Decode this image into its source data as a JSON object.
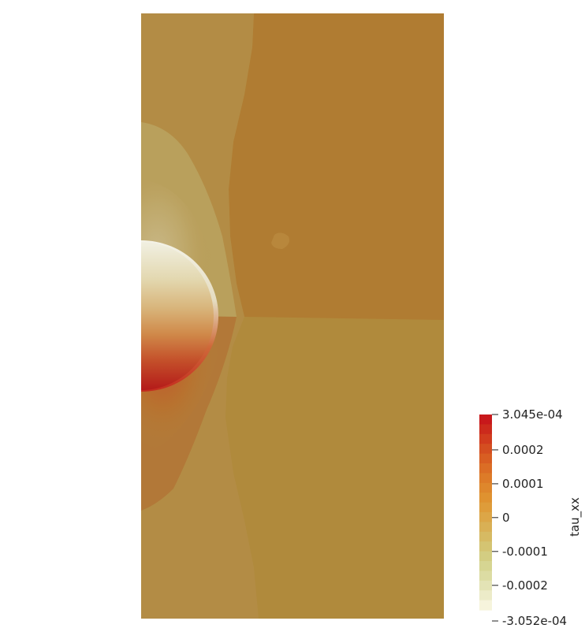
{
  "colorbar": {
    "title": "tau_xx",
    "max_label": "3.045e-04",
    "min_label": "-3.052e-04",
    "range": [
      -0.0003052,
      0.0003045
    ],
    "ticks": [
      {
        "value": 0.0003045,
        "label": "3.045e-04"
      },
      {
        "value": 0.0002,
        "label": "0.0002"
      },
      {
        "value": 0.0001,
        "label": "0.0001"
      },
      {
        "value": 0,
        "label": "0"
      },
      {
        "value": -0.0001,
        "label": "-0.0001"
      },
      {
        "value": -0.0002,
        "label": "-0.0002"
      },
      {
        "value": -0.0003052,
        "label": "-3.052e-04"
      }
    ],
    "band_colors": [
      "#c8181b",
      "#cc2a1c",
      "#d13c1e",
      "#d44e20",
      "#d85e22",
      "#db6d25",
      "#dd7b28",
      "#de872c",
      "#df9230",
      "#de9c3a",
      "#dca647",
      "#d9b055",
      "#d6ba63",
      "#d4c472",
      "#d3cd82",
      "#d6d592",
      "#dcdca3",
      "#e3e3b5",
      "#ecebc8",
      "#f6f4dc"
    ]
  },
  "field_colors": {
    "background_upper_right": "#b07c32",
    "background_lower": "#b08a3c",
    "left_lobe_outer": "#b38c45",
    "left_lobe_inner": "#bba05e",
    "left_lobe_upper": "#c2aa6c",
    "lower_lobe": "#b27436",
    "lower_lobe_inner": "#b8652f",
    "disc_light": "#eeeddc",
    "disc_mid": "#d6a76a",
    "disc_dark": "#b81d1a"
  }
}
